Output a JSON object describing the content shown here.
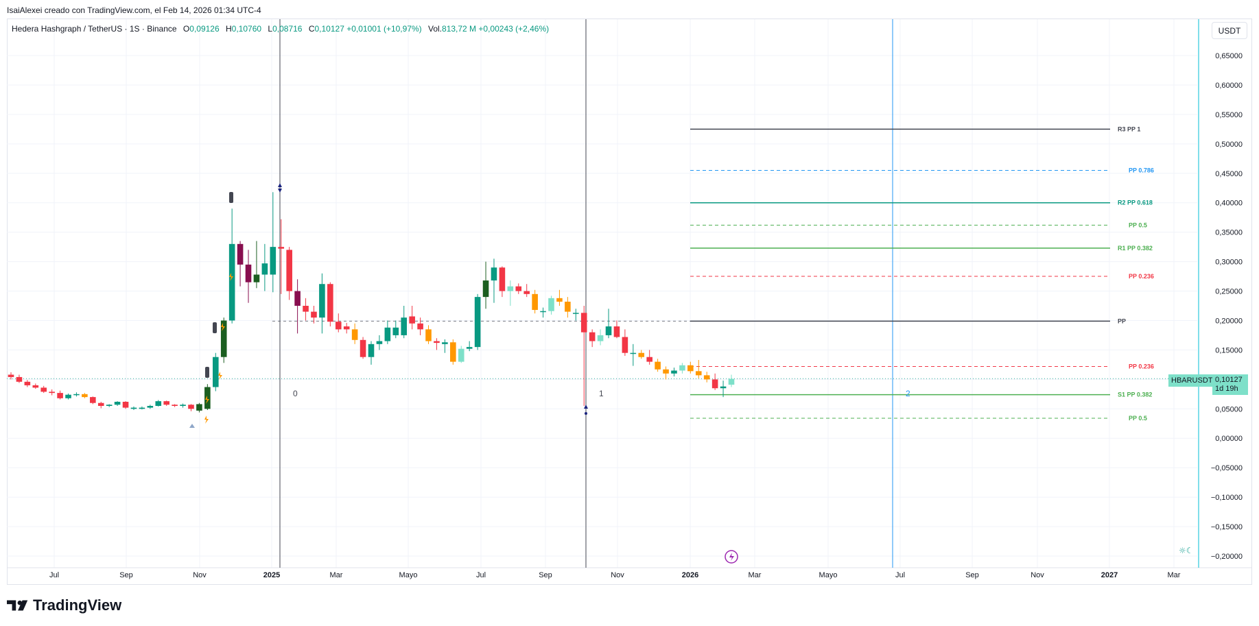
{
  "caption": "IsaiAlexei creado con TradingView.com, el Feb 14, 2026 01:34 UTC-4",
  "legend": {
    "symbol": "Hedera Hashgraph / TetherUS · 1S · Binance",
    "o_label": "O",
    "o_value": "0,09126",
    "h_label": "H",
    "h_value": "0,10760",
    "l_label": "L",
    "l_value": "0,08716",
    "c_label": "C",
    "c_value": "0,10127",
    "change": "+0,01001 (+10,97%)",
    "vol_label": "Vol.",
    "vol_value": "813,72 M",
    "vol_change": "+0,00243 (+2,46%)"
  },
  "currency_button": "USDT",
  "last_price": {
    "symbol": "HBARUSDT",
    "price": "0,10127",
    "countdown": "1d 19h"
  },
  "brand": "TradingView",
  "colors": {
    "up": "#089981",
    "down": "#f23645",
    "up_light": "#7ee0c9",
    "down_dark": "#880e4f",
    "orange": "#ff9800",
    "dark_green": "#1b5e20",
    "grid": "#f0f3fa",
    "axis_text": "#131722",
    "pivot_gray": "#434651",
    "fib_blue": "#2196f3",
    "fib_green": "#4caf50",
    "fib_red": "#f23645",
    "vline_blue": "#2196f3"
  },
  "chart_data": {
    "type": "candlestick",
    "title": "Hedera Hashgraph / TetherUS · 1S · Binance",
    "x_ticks": [
      "Jul",
      "Sep",
      "Nov",
      "2025",
      "Mar",
      "Mayo",
      "Jul",
      "Sep",
      "Nov",
      "2026",
      "Mar",
      "Mayo",
      "Jul",
      "Sep",
      "Nov",
      "2027",
      "Mar"
    ],
    "y_ticks": [
      "0,65000",
      "0,60000",
      "0,55000",
      "0,50000",
      "0,45000",
      "0,40000",
      "0,35000",
      "0,30000",
      "0,25000",
      "0,20000",
      "0,15000",
      "0,10000",
      "0,05000",
      "0,00000",
      "−0,05000",
      "−0,10000",
      "−0,15000",
      "−0,20000"
    ],
    "ylim": [
      -0.2,
      0.65
    ],
    "candles": [
      {
        "o": 0.108,
        "h": 0.112,
        "l": 0.1,
        "c": 0.104,
        "t": "down"
      },
      {
        "o": 0.104,
        "h": 0.108,
        "l": 0.094,
        "c": 0.096,
        "t": "down"
      },
      {
        "o": 0.096,
        "h": 0.099,
        "l": 0.087,
        "c": 0.09,
        "t": "down"
      },
      {
        "o": 0.09,
        "h": 0.093,
        "l": 0.084,
        "c": 0.086,
        "t": "down"
      },
      {
        "o": 0.086,
        "h": 0.089,
        "l": 0.077,
        "c": 0.079,
        "t": "down"
      },
      {
        "o": 0.079,
        "h": 0.083,
        "l": 0.073,
        "c": 0.077,
        "t": "down"
      },
      {
        "o": 0.077,
        "h": 0.081,
        "l": 0.066,
        "c": 0.068,
        "t": "down"
      },
      {
        "o": 0.068,
        "h": 0.076,
        "l": 0.066,
        "c": 0.074,
        "t": "up"
      },
      {
        "o": 0.074,
        "h": 0.078,
        "l": 0.071,
        "c": 0.075,
        "t": "up"
      },
      {
        "o": 0.075,
        "h": 0.077,
        "l": 0.068,
        "c": 0.07,
        "t": "orange"
      },
      {
        "o": 0.07,
        "h": 0.071,
        "l": 0.058,
        "c": 0.06,
        "t": "down"
      },
      {
        "o": 0.06,
        "h": 0.062,
        "l": 0.051,
        "c": 0.055,
        "t": "down"
      },
      {
        "o": 0.055,
        "h": 0.058,
        "l": 0.053,
        "c": 0.057,
        "t": "up"
      },
      {
        "o": 0.057,
        "h": 0.063,
        "l": 0.055,
        "c": 0.062,
        "t": "up"
      },
      {
        "o": 0.062,
        "h": 0.063,
        "l": 0.05,
        "c": 0.052,
        "t": "down"
      },
      {
        "o": 0.052,
        "h": 0.054,
        "l": 0.048,
        "c": 0.05,
        "t": "up"
      },
      {
        "o": 0.05,
        "h": 0.054,
        "l": 0.049,
        "c": 0.052,
        "t": "up"
      },
      {
        "o": 0.052,
        "h": 0.057,
        "l": 0.05,
        "c": 0.055,
        "t": "up"
      },
      {
        "o": 0.055,
        "h": 0.065,
        "l": 0.054,
        "c": 0.063,
        "t": "up"
      },
      {
        "o": 0.063,
        "h": 0.064,
        "l": 0.055,
        "c": 0.057,
        "t": "down"
      },
      {
        "o": 0.057,
        "h": 0.058,
        "l": 0.053,
        "c": 0.055,
        "t": "down"
      },
      {
        "o": 0.055,
        "h": 0.059,
        "l": 0.052,
        "c": 0.057,
        "t": "up"
      },
      {
        "o": 0.057,
        "h": 0.058,
        "l": 0.046,
        "c": 0.05,
        "t": "down"
      },
      {
        "o": 0.047,
        "h": 0.06,
        "l": 0.044,
        "c": 0.058,
        "t": "dark_green"
      },
      {
        "o": 0.05,
        "h": 0.092,
        "l": 0.048,
        "c": 0.087,
        "t": "dark_green"
      },
      {
        "o": 0.087,
        "h": 0.145,
        "l": 0.08,
        "c": 0.138,
        "t": "up"
      },
      {
        "o": 0.138,
        "h": 0.205,
        "l": 0.128,
        "c": 0.2,
        "t": "dark_green"
      },
      {
        "o": 0.2,
        "h": 0.39,
        "l": 0.195,
        "c": 0.33,
        "t": "up"
      },
      {
        "o": 0.33,
        "h": 0.335,
        "l": 0.258,
        "c": 0.295,
        "t": "down_dark"
      },
      {
        "o": 0.295,
        "h": 0.32,
        "l": 0.23,
        "c": 0.265,
        "t": "down_dark"
      },
      {
        "o": 0.265,
        "h": 0.335,
        "l": 0.255,
        "c": 0.278,
        "t": "dark_green"
      },
      {
        "o": 0.278,
        "h": 0.33,
        "l": 0.25,
        "c": 0.297,
        "t": "up"
      },
      {
        "o": 0.278,
        "h": 0.418,
        "l": 0.248,
        "c": 0.325,
        "t": "up"
      },
      {
        "o": 0.325,
        "h": 0.372,
        "l": 0.245,
        "c": 0.322,
        "t": "down"
      },
      {
        "o": 0.32,
        "h": 0.325,
        "l": 0.235,
        "c": 0.25,
        "t": "down"
      },
      {
        "o": 0.25,
        "h": 0.27,
        "l": 0.178,
        "c": 0.225,
        "t": "down_dark"
      },
      {
        "o": 0.225,
        "h": 0.238,
        "l": 0.2,
        "c": 0.215,
        "t": "down"
      },
      {
        "o": 0.215,
        "h": 0.225,
        "l": 0.195,
        "c": 0.205,
        "t": "down"
      },
      {
        "o": 0.205,
        "h": 0.28,
        "l": 0.178,
        "c": 0.262,
        "t": "up"
      },
      {
        "o": 0.262,
        "h": 0.265,
        "l": 0.19,
        "c": 0.198,
        "t": "down"
      },
      {
        "o": 0.198,
        "h": 0.212,
        "l": 0.18,
        "c": 0.185,
        "t": "down"
      },
      {
        "o": 0.185,
        "h": 0.196,
        "l": 0.178,
        "c": 0.19,
        "t": "down"
      },
      {
        "o": 0.185,
        "h": 0.195,
        "l": 0.16,
        "c": 0.167,
        "t": "orange"
      },
      {
        "o": 0.167,
        "h": 0.172,
        "l": 0.135,
        "c": 0.138,
        "t": "down"
      },
      {
        "o": 0.138,
        "h": 0.165,
        "l": 0.125,
        "c": 0.16,
        "t": "up"
      },
      {
        "o": 0.16,
        "h": 0.175,
        "l": 0.15,
        "c": 0.165,
        "t": "up"
      },
      {
        "o": 0.165,
        "h": 0.2,
        "l": 0.16,
        "c": 0.188,
        "t": "up"
      },
      {
        "o": 0.188,
        "h": 0.2,
        "l": 0.17,
        "c": 0.175,
        "t": "up"
      },
      {
        "o": 0.175,
        "h": 0.225,
        "l": 0.17,
        "c": 0.205,
        "t": "up"
      },
      {
        "o": 0.207,
        "h": 0.225,
        "l": 0.185,
        "c": 0.195,
        "t": "down"
      },
      {
        "o": 0.195,
        "h": 0.205,
        "l": 0.175,
        "c": 0.185,
        "t": "down"
      },
      {
        "o": 0.185,
        "h": 0.192,
        "l": 0.16,
        "c": 0.165,
        "t": "orange"
      },
      {
        "o": 0.165,
        "h": 0.17,
        "l": 0.15,
        "c": 0.162,
        "t": "down"
      },
      {
        "o": 0.16,
        "h": 0.168,
        "l": 0.145,
        "c": 0.163,
        "t": "up"
      },
      {
        "o": 0.163,
        "h": 0.168,
        "l": 0.125,
        "c": 0.13,
        "t": "orange"
      },
      {
        "o": 0.13,
        "h": 0.157,
        "l": 0.128,
        "c": 0.152,
        "t": "up_light"
      },
      {
        "o": 0.152,
        "h": 0.165,
        "l": 0.148,
        "c": 0.155,
        "t": "up"
      },
      {
        "o": 0.155,
        "h": 0.245,
        "l": 0.15,
        "c": 0.24,
        "t": "up"
      },
      {
        "o": 0.24,
        "h": 0.3,
        "l": 0.22,
        "c": 0.268,
        "t": "dark_green"
      },
      {
        "o": 0.268,
        "h": 0.305,
        "l": 0.23,
        "c": 0.29,
        "t": "up"
      },
      {
        "o": 0.29,
        "h": 0.292,
        "l": 0.24,
        "c": 0.25,
        "t": "down"
      },
      {
        "o": 0.25,
        "h": 0.268,
        "l": 0.225,
        "c": 0.258,
        "t": "up_light"
      },
      {
        "o": 0.258,
        "h": 0.263,
        "l": 0.245,
        "c": 0.25,
        "t": "down"
      },
      {
        "o": 0.25,
        "h": 0.262,
        "l": 0.24,
        "c": 0.245,
        "t": "down"
      },
      {
        "o": 0.245,
        "h": 0.252,
        "l": 0.212,
        "c": 0.218,
        "t": "orange"
      },
      {
        "o": 0.215,
        "h": 0.222,
        "l": 0.205,
        "c": 0.216,
        "t": "up"
      },
      {
        "o": 0.216,
        "h": 0.242,
        "l": 0.21,
        "c": 0.238,
        "t": "up_light"
      },
      {
        "o": 0.238,
        "h": 0.252,
        "l": 0.225,
        "c": 0.232,
        "t": "orange"
      },
      {
        "o": 0.232,
        "h": 0.24,
        "l": 0.205,
        "c": 0.215,
        "t": "orange"
      },
      {
        "o": 0.212,
        "h": 0.22,
        "l": 0.2,
        "c": 0.213,
        "t": "up"
      },
      {
        "o": 0.213,
        "h": 0.225,
        "l": 0.055,
        "c": 0.18,
        "t": "down"
      },
      {
        "o": 0.18,
        "h": 0.185,
        "l": 0.155,
        "c": 0.165,
        "t": "down"
      },
      {
        "o": 0.165,
        "h": 0.185,
        "l": 0.158,
        "c": 0.175,
        "t": "up_light"
      },
      {
        "o": 0.175,
        "h": 0.22,
        "l": 0.17,
        "c": 0.19,
        "t": "up"
      },
      {
        "o": 0.19,
        "h": 0.2,
        "l": 0.17,
        "c": 0.172,
        "t": "down"
      },
      {
        "o": 0.172,
        "h": 0.185,
        "l": 0.14,
        "c": 0.145,
        "t": "down"
      },
      {
        "o": 0.145,
        "h": 0.16,
        "l": 0.123,
        "c": 0.145,
        "t": "up"
      },
      {
        "o": 0.145,
        "h": 0.15,
        "l": 0.135,
        "c": 0.138,
        "t": "orange"
      },
      {
        "o": 0.138,
        "h": 0.15,
        "l": 0.125,
        "c": 0.13,
        "t": "down"
      },
      {
        "o": 0.13,
        "h": 0.135,
        "l": 0.113,
        "c": 0.117,
        "t": "orange"
      },
      {
        "o": 0.117,
        "h": 0.122,
        "l": 0.1,
        "c": 0.11,
        "t": "orange"
      },
      {
        "o": 0.11,
        "h": 0.12,
        "l": 0.105,
        "c": 0.115,
        "t": "up"
      },
      {
        "o": 0.115,
        "h": 0.128,
        "l": 0.11,
        "c": 0.124,
        "t": "up_light"
      },
      {
        "o": 0.124,
        "h": 0.13,
        "l": 0.11,
        "c": 0.114,
        "t": "orange"
      },
      {
        "o": 0.114,
        "h": 0.133,
        "l": 0.102,
        "c": 0.107,
        "t": "orange"
      },
      {
        "o": 0.107,
        "h": 0.113,
        "l": 0.095,
        "c": 0.1,
        "t": "orange"
      },
      {
        "o": 0.1,
        "h": 0.11,
        "l": 0.082,
        "c": 0.085,
        "t": "down"
      },
      {
        "o": 0.085,
        "h": 0.098,
        "l": 0.07,
        "c": 0.088,
        "t": "up"
      },
      {
        "o": 0.091,
        "h": 0.108,
        "l": 0.087,
        "c": 0.101,
        "t": "up_light"
      }
    ],
    "pivot_levels": [
      {
        "label": "R3 PP 1",
        "value": 0.525,
        "style": "solid",
        "color": "pivot_gray"
      },
      {
        "label": "PP 0.786",
        "value": 0.455,
        "style": "dashed",
        "color": "fib_blue"
      },
      {
        "label": "R2 PP 0.618",
        "value": 0.4,
        "style": "solid",
        "color": "up"
      },
      {
        "label": "PP 0.5",
        "value": 0.362,
        "style": "dashed",
        "color": "fib_green"
      },
      {
        "label": "R1 PP 0.382",
        "value": 0.323,
        "style": "solid",
        "color": "fib_green"
      },
      {
        "label": "PP 0.236",
        "value": 0.275,
        "style": "dashed",
        "color": "fib_red"
      },
      {
        "label": "PP",
        "value": 0.199,
        "style": "solid",
        "color": "pivot_gray"
      },
      {
        "label": "PP 0.236",
        "value": 0.122,
        "style": "dashed",
        "color": "fib_red"
      },
      {
        "label": "S1 PP 0.382",
        "value": 0.074,
        "style": "solid",
        "color": "fib_green"
      },
      {
        "label": "PP 0.5",
        "value": 0.034,
        "style": "dashed",
        "color": "fib_green"
      }
    ],
    "cycle_labels": [
      "0",
      "1",
      "2"
    ],
    "last_value": 0.10127
  }
}
